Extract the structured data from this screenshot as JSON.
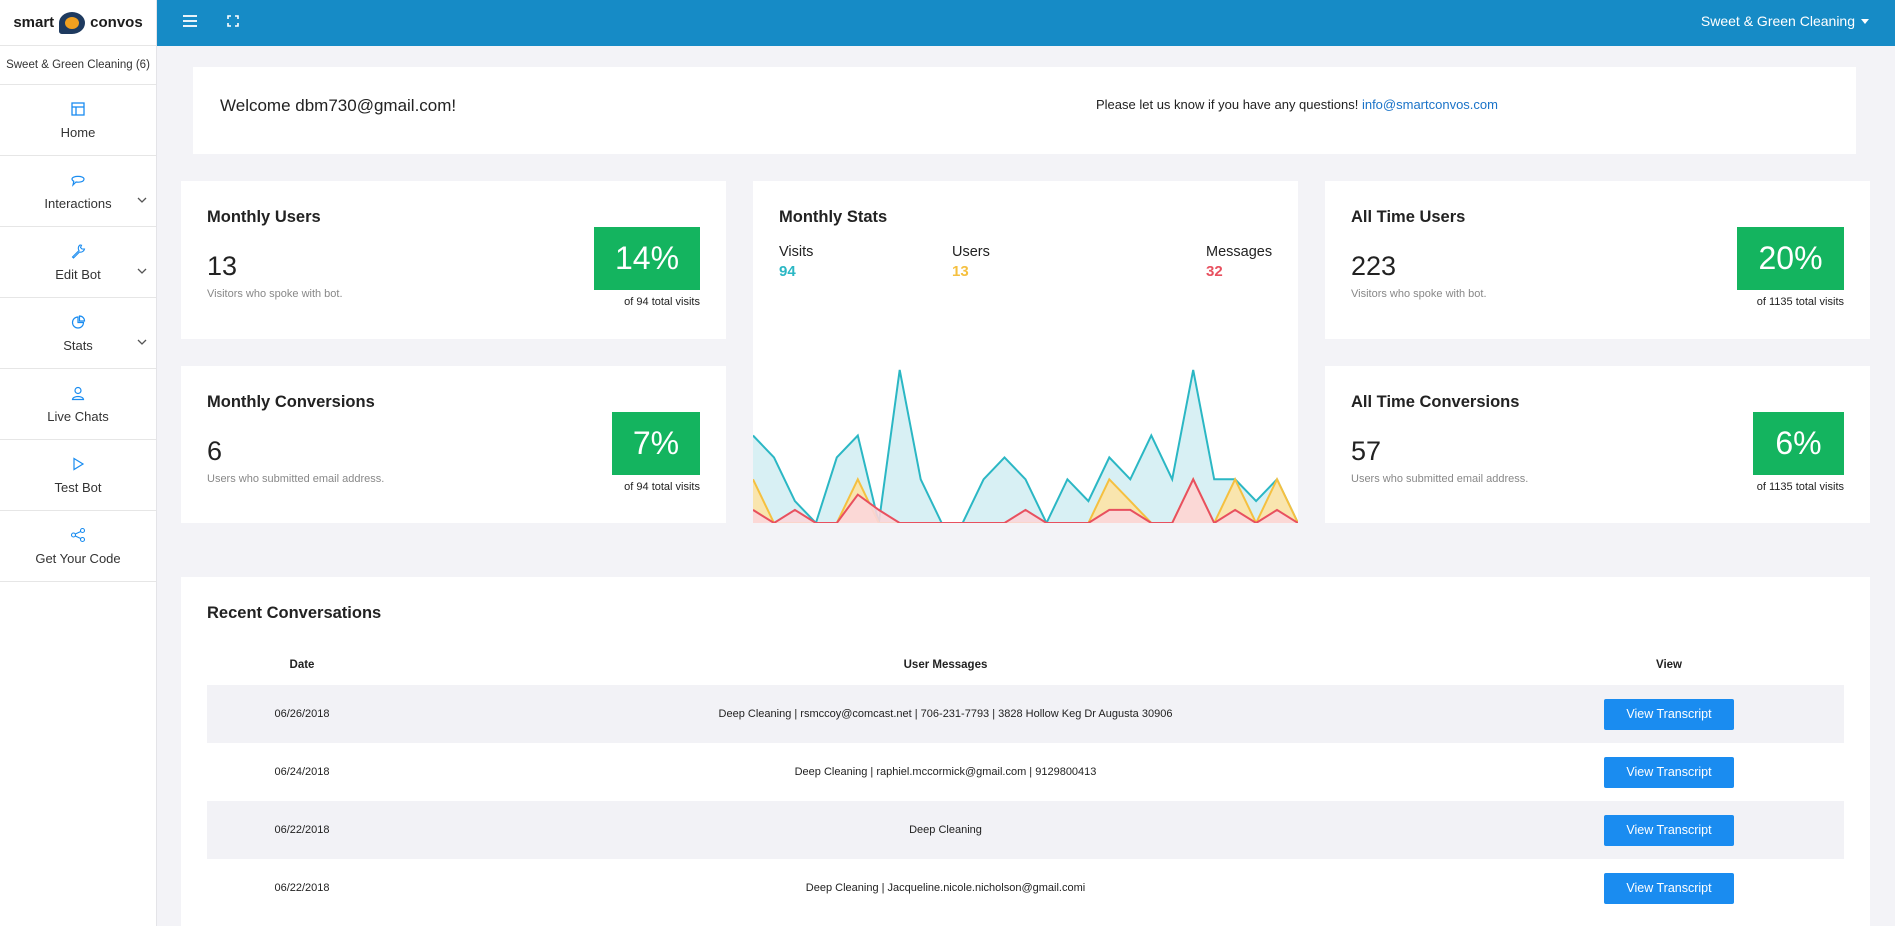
{
  "brand": {
    "word1": "smart",
    "word2": "convos"
  },
  "sidebar": {
    "account_label": "Sweet & Green Cleaning (6)",
    "items": [
      {
        "label": "Home",
        "icon": "layout-icon",
        "has_chevron": false
      },
      {
        "label": "Interactions",
        "icon": "chat-icon",
        "has_chevron": true
      },
      {
        "label": "Edit Bot",
        "icon": "wrench-icon",
        "has_chevron": true
      },
      {
        "label": "Stats",
        "icon": "pie-icon",
        "has_chevron": true
      },
      {
        "label": "Live Chats",
        "icon": "user-icon",
        "has_chevron": false
      },
      {
        "label": "Test Bot",
        "icon": "play-icon",
        "has_chevron": false
      },
      {
        "label": "Get Your Code",
        "icon": "share-icon",
        "has_chevron": false
      }
    ]
  },
  "topbar": {
    "account_name": "Sweet & Green Cleaning",
    "accent": "#168bc6"
  },
  "welcome": {
    "text": "Welcome dbm730@gmail.com!",
    "contact_prefix": "Please let us know if you have any questions!",
    "contact_email": "info@smartconvos.com"
  },
  "cards": {
    "monthly_users": {
      "title": "Monthly Users",
      "value": "13",
      "desc": "Visitors who spoke with bot.",
      "percent": "14%",
      "note": "of 94 total visits"
    },
    "monthly_conversions": {
      "title": "Monthly Conversions",
      "value": "6",
      "desc": "Users who submitted email address.",
      "percent": "7%",
      "note": "of 94 total visits"
    },
    "alltime_users": {
      "title": "All Time Users",
      "value": "223",
      "desc": "Visitors who spoke with bot.",
      "percent": "20%",
      "note": "of 1135 total visits"
    },
    "alltime_conversions": {
      "title": "All Time Conversions",
      "value": "57",
      "desc": "Users who submitted email address.",
      "percent": "6%",
      "note": "of 1135 total visits"
    }
  },
  "monthly_stats": {
    "title": "Monthly Stats",
    "visits_label": "Visits",
    "visits_value": "94",
    "users_label": "Users",
    "users_value": "13",
    "messages_label": "Messages",
    "messages_value": "32",
    "colors": {
      "visits": "#2bb7c4",
      "users": "#f5c040",
      "messages": "#e8505f"
    }
  },
  "chart_data": {
    "type": "area",
    "series": [
      {
        "name": "Visits",
        "values": [
          4,
          3,
          1,
          0,
          3,
          4,
          0,
          7,
          2,
          0,
          0,
          2,
          3,
          2,
          0,
          2,
          1,
          3,
          2,
          4,
          2,
          7,
          2,
          2,
          1,
          2,
          0
        ]
      },
      {
        "name": "Users",
        "values": [
          2,
          0,
          0,
          0,
          0,
          2,
          0,
          0,
          0,
          0,
          0,
          0,
          0,
          0,
          0,
          0,
          0,
          2,
          1,
          0,
          0,
          2,
          0,
          2,
          0,
          2,
          0
        ]
      },
      {
        "name": "Messages",
        "values": [
          0.6,
          0,
          0.6,
          0,
          0,
          1.3,
          0.6,
          0,
          0,
          0,
          0,
          0,
          0,
          0.6,
          0,
          0,
          0,
          0.6,
          0.6,
          0,
          0,
          2,
          0,
          0.6,
          0,
          0.6,
          0
        ]
      }
    ],
    "ylim": [
      0,
      7.5
    ],
    "grid": false,
    "legend": "none"
  },
  "recent": {
    "title": "Recent Conversations",
    "columns": [
      "Date",
      "User Messages",
      "View"
    ],
    "button_label": "View Transcript",
    "rows": [
      {
        "date": "06/26/2018",
        "messages": "Deep Cleaning | rsmccoy@comcast.net | 706-231-7793 | 3828 Hollow Keg Dr Augusta 30906"
      },
      {
        "date": "06/24/2018",
        "messages": "Deep Cleaning | raphiel.mccormick@gmail.com | 9129800413"
      },
      {
        "date": "06/22/2018",
        "messages": "Deep Cleaning"
      },
      {
        "date": "06/22/2018",
        "messages": "Deep Cleaning | Jacqueline.nicole.nicholson@gmail.comi"
      }
    ]
  }
}
